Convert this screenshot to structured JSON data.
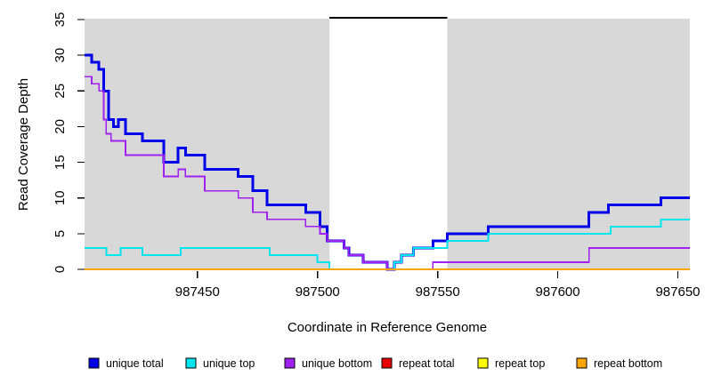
{
  "chart_data": {
    "type": "line",
    "subtype": "step-after-coverage-plot",
    "title": "",
    "xlabel": "Coordinate in Reference Genome",
    "ylabel": "Read Coverage Depth",
    "xlim": [
      987403,
      987655
    ],
    "ylim": [
      0,
      35
    ],
    "x_ticks": [
      987450,
      987500,
      987550,
      987600,
      987650
    ],
    "y_ticks": [
      0,
      5,
      10,
      15,
      20,
      25,
      30,
      35
    ],
    "grid": false,
    "plot_background": "#ffffff",
    "mappable_regions": [
      {
        "label": "unique-mappable-left",
        "x0": 987403,
        "x1": 987505,
        "color": "#d8d8d8"
      },
      {
        "label": "unique-mappable-right",
        "x0": 987554,
        "x1": 987655,
        "color": "#d8d8d8"
      }
    ],
    "repeat_region_bar": {
      "x0": 987505,
      "x1": 987554,
      "y": 35,
      "color": "#000000"
    },
    "series": [
      {
        "name": "unique total",
        "color": "#0000e8",
        "line_width": 3,
        "points": [
          [
            987403,
            30
          ],
          [
            987406,
            29
          ],
          [
            987409,
            28
          ],
          [
            987411,
            25
          ],
          [
            987413,
            21
          ],
          [
            987415,
            20
          ],
          [
            987417,
            21
          ],
          [
            987420,
            19
          ],
          [
            987427,
            18
          ],
          [
            987436,
            15
          ],
          [
            987442,
            17
          ],
          [
            987445,
            16
          ],
          [
            987453,
            14
          ],
          [
            987467,
            13
          ],
          [
            987473,
            11
          ],
          [
            987479,
            9
          ],
          [
            987495,
            8
          ],
          [
            987501,
            6
          ],
          [
            987504,
            4
          ],
          [
            987511,
            3
          ],
          [
            987513,
            2
          ],
          [
            987519,
            1
          ],
          [
            987529,
            0
          ],
          [
            987532,
            1
          ],
          [
            987535,
            2
          ],
          [
            987540,
            3
          ],
          [
            987548,
            4
          ],
          [
            987554,
            5
          ],
          [
            987571,
            6
          ],
          [
            987613,
            8
          ],
          [
            987621,
            9
          ],
          [
            987643,
            10
          ],
          [
            987655,
            10
          ]
        ]
      },
      {
        "name": "unique top",
        "color": "#00e5ee",
        "line_width": 2,
        "points": [
          [
            987403,
            3
          ],
          [
            987412,
            2
          ],
          [
            987418,
            3
          ],
          [
            987427,
            2
          ],
          [
            987443,
            3
          ],
          [
            987480,
            2
          ],
          [
            987500,
            1
          ],
          [
            987505,
            0
          ],
          [
            987532,
            1
          ],
          [
            987535,
            2
          ],
          [
            987540,
            3
          ],
          [
            987554,
            4
          ],
          [
            987571,
            5
          ],
          [
            987622,
            6
          ],
          [
            987643,
            7
          ],
          [
            987655,
            7
          ]
        ]
      },
      {
        "name": "unique bottom",
        "color": "#a020f0",
        "line_width": 1.8,
        "points": [
          [
            987403,
            27
          ],
          [
            987406,
            26
          ],
          [
            987409,
            25
          ],
          [
            987411,
            21
          ],
          [
            987412,
            19
          ],
          [
            987414,
            18
          ],
          [
            987420,
            16
          ],
          [
            987436,
            13
          ],
          [
            987442,
            14
          ],
          [
            987445,
            13
          ],
          [
            987453,
            11
          ],
          [
            987467,
            10
          ],
          [
            987473,
            8
          ],
          [
            987479,
            7
          ],
          [
            987495,
            6
          ],
          [
            987501,
            5
          ],
          [
            987504,
            4
          ],
          [
            987511,
            3
          ],
          [
            987513,
            2
          ],
          [
            987519,
            1
          ],
          [
            987529,
            0
          ],
          [
            987548,
            1
          ],
          [
            987613,
            3
          ],
          [
            987655,
            3
          ]
        ]
      },
      {
        "name": "repeat total",
        "color": "#e60000",
        "line_width": 1.2,
        "points": [
          [
            987403,
            0
          ],
          [
            987655,
            0
          ]
        ]
      },
      {
        "name": "repeat top",
        "color": "#ffff00",
        "line_width": 1.2,
        "points": [
          [
            987403,
            0
          ],
          [
            987655,
            0
          ]
        ]
      },
      {
        "name": "repeat bottom",
        "color": "#ffa500",
        "line_width": 2,
        "points": [
          [
            987403,
            0
          ],
          [
            987655,
            0
          ]
        ]
      }
    ],
    "legend": {
      "position": "bottom",
      "entries": [
        {
          "label": "unique total",
          "color": "#0000e8"
        },
        {
          "label": "unique top",
          "color": "#00e5ee"
        },
        {
          "label": "unique bottom",
          "color": "#a020f0"
        },
        {
          "label": "repeat total",
          "color": "#e60000"
        },
        {
          "label": "repeat top",
          "color": "#ffff00"
        },
        {
          "label": "repeat bottom",
          "color": "#ffa500"
        }
      ]
    }
  }
}
